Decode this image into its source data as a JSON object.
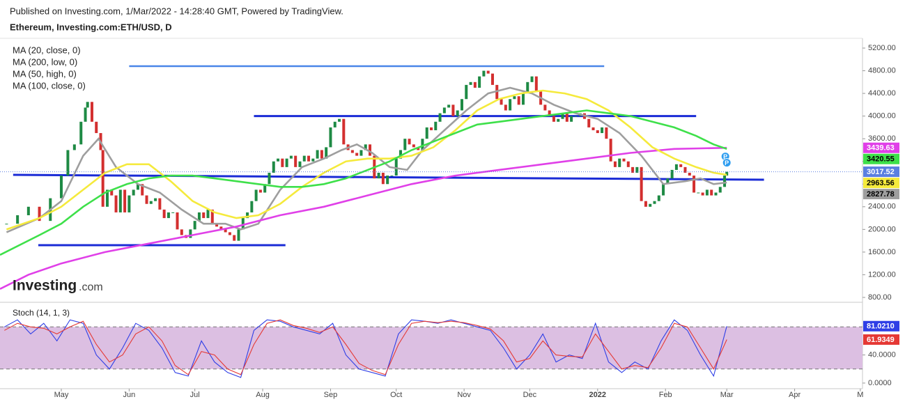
{
  "header": {
    "published": "Published on Investing.com, 1/Mar/2022 - 14:28:40 GMT, Powered by TradingView."
  },
  "watermark": {
    "brand": "Investing",
    "suffix": ".com"
  },
  "event_markers": [
    "P",
    "P"
  ],
  "chart_data": [
    {
      "type": "candlestick",
      "title": "Ethereum, Investing.com:ETH/USD, D",
      "up_color": "#1e8a44",
      "down_color": "#d32f2f",
      "marker_color": "#5b7fe0",
      "x": [
        -25,
        -20,
        -15,
        -10,
        -5,
        0,
        3,
        6,
        9,
        11,
        12,
        14,
        16,
        18,
        19,
        21,
        23,
        25,
        27,
        29,
        31,
        33,
        35,
        37,
        39,
        41,
        43,
        45,
        47,
        49,
        51,
        53,
        55,
        57,
        59,
        61,
        63,
        65,
        67,
        69,
        71,
        73,
        75,
        77,
        79,
        81,
        83,
        85,
        87,
        89,
        91,
        93,
        95,
        97,
        99,
        101,
        103,
        105,
        107,
        109,
        111,
        113,
        115,
        117,
        119,
        121,
        123,
        125,
        127,
        129,
        131,
        133,
        135,
        137,
        139,
        141,
        143,
        145,
        147,
        149,
        151,
        153,
        155,
        157,
        159,
        161,
        163,
        165,
        167,
        169,
        171,
        173,
        175,
        177,
        179,
        181,
        183,
        185,
        187,
        189,
        191,
        193,
        195,
        197,
        199,
        201,
        203,
        205,
        207,
        209,
        211,
        213,
        215,
        217,
        219,
        221,
        223,
        225,
        227,
        229,
        231,
        233,
        235,
        237,
        239,
        241,
        243,
        245,
        247,
        249,
        251,
        253,
        255,
        257,
        259,
        261,
        263,
        265,
        267,
        269,
        271,
        273,
        275,
        277,
        279,
        281,
        283,
        285,
        287,
        289,
        291,
        293,
        295,
        297,
        299,
        301,
        303,
        304
      ],
      "values": [
        2100,
        2250,
        2400,
        2150,
        2550,
        2950,
        3400,
        3500,
        3900,
        4150,
        4250,
        3900,
        3700,
        3400,
        2400,
        2700,
        2600,
        2300,
        2700,
        2300,
        2600,
        2700,
        2800,
        2600,
        2450,
        2500,
        2550,
        2350,
        2200,
        2300,
        2300,
        2000,
        1900,
        1850,
        2000,
        2150,
        2300,
        2200,
        2350,
        2100,
        2050,
        2000,
        1950,
        1900,
        1800,
        2000,
        2200,
        2300,
        2500,
        2700,
        2650,
        2800,
        3000,
        3200,
        3250,
        3100,
        3250,
        3300,
        3100,
        3200,
        3300,
        3200,
        3250,
        3400,
        3250,
        3450,
        3800,
        3900,
        3950,
        3500,
        3400,
        3350,
        3300,
        3400,
        3500,
        3300,
        2900,
        3000,
        2800,
        2950,
        2950,
        3250,
        3400,
        3600,
        3500,
        3450,
        3400,
        3600,
        3800,
        3750,
        3900,
        4050,
        4150,
        4200,
        4000,
        4100,
        4300,
        4550,
        4600,
        4500,
        4700,
        4800,
        4750,
        4550,
        4300,
        4200,
        4100,
        4300,
        4350,
        4200,
        4400,
        4600,
        4700,
        4450,
        4200,
        4100,
        4000,
        3900,
        3950,
        4050,
        3900,
        4000,
        4000,
        4050,
        3950,
        3800,
        3750,
        3700,
        3800,
        3600,
        3200,
        3100,
        3250,
        3200,
        3100,
        3000,
        3100,
        2500,
        2400,
        2450,
        2500,
        2600,
        2800,
        2900,
        3050,
        3150,
        3100,
        3000,
        2950,
        2650,
        2650,
        2600,
        2700,
        2600,
        2650,
        2750,
        2950,
        3017.52
      ],
      "series": [
        {
          "name": "MA (20, close, 0)",
          "color": "#9e9e9e",
          "x": [
            -25,
            -10,
            0,
            10,
            17,
            25,
            35,
            45,
            55,
            65,
            75,
            82,
            90,
            100,
            110,
            120,
            128,
            135,
            142,
            150,
            158,
            165,
            175,
            185,
            195,
            205,
            215,
            225,
            235,
            245,
            255,
            265,
            275,
            285,
            292,
            298,
            304
          ],
          "values": [
            1950,
            2200,
            2500,
            3300,
            3600,
            3100,
            2800,
            2650,
            2350,
            2100,
            2100,
            2000,
            2100,
            2700,
            3100,
            3250,
            3400,
            3500,
            3350,
            3100,
            3050,
            3400,
            3750,
            4100,
            4400,
            4500,
            4400,
            4200,
            4050,
            3950,
            3700,
            3300,
            2800,
            2850,
            2900,
            2800,
            2827.78
          ]
        },
        {
          "name": "MA (200, low, 0)",
          "color": "#e040e8",
          "x": [
            -28,
            -15,
            0,
            20,
            40,
            60,
            80,
            100,
            120,
            140,
            160,
            180,
            200,
            220,
            240,
            260,
            280,
            304
          ],
          "values": [
            950,
            1200,
            1400,
            1600,
            1750,
            1900,
            2050,
            2250,
            2400,
            2600,
            2800,
            2950,
            3050,
            3150,
            3250,
            3350,
            3420,
            3439.63
          ]
        },
        {
          "name": "MA (50, high, 0)",
          "color": "#f5ea3c",
          "x": [
            -25,
            -10,
            0,
            10,
            20,
            30,
            40,
            50,
            60,
            70,
            80,
            90,
            100,
            110,
            120,
            130,
            140,
            150,
            160,
            170,
            180,
            190,
            200,
            210,
            220,
            230,
            240,
            250,
            260,
            270,
            280,
            290,
            298,
            304
          ],
          "values": [
            2000,
            2200,
            2400,
            2700,
            3000,
            3150,
            3150,
            2850,
            2500,
            2300,
            2200,
            2250,
            2450,
            2750,
            3000,
            3200,
            3250,
            3250,
            3300,
            3450,
            3750,
            4100,
            4300,
            4400,
            4450,
            4400,
            4300,
            4100,
            3800,
            3450,
            3250,
            3100,
            3000,
            2963.56
          ]
        },
        {
          "name": "MA (100, close, 0)",
          "color": "#3ee04a",
          "x": [
            -28,
            -10,
            0,
            10,
            20,
            30,
            40,
            50,
            60,
            70,
            80,
            90,
            100,
            110,
            120,
            130,
            140,
            150,
            160,
            170,
            180,
            190,
            200,
            210,
            220,
            230,
            240,
            250,
            260,
            270,
            280,
            290,
            298,
            304
          ],
          "values": [
            1550,
            1900,
            2100,
            2400,
            2650,
            2800,
            2900,
            2950,
            2950,
            2900,
            2850,
            2800,
            2750,
            2750,
            2800,
            2900,
            3050,
            3200,
            3400,
            3550,
            3700,
            3850,
            3900,
            3950,
            4000,
            4050,
            4100,
            4050,
            4000,
            3900,
            3800,
            3650,
            3500,
            3420.55
          ]
        }
      ],
      "levels": [
        {
          "color": "#4a86e8",
          "x": [
            31,
            248
          ],
          "y": [
            4880,
            4880
          ]
        },
        {
          "color": "#1a2bd6",
          "x": [
            88,
            290
          ],
          "y": [
            4000,
            4000
          ]
        },
        {
          "color": "#1a2bd6",
          "x": [
            -22,
            321
          ],
          "y": [
            2963,
            2877
          ]
        },
        {
          "color": "#1a2bd6",
          "x": [
            -10.5,
            102.4
          ],
          "y": [
            1722,
            1722
          ]
        }
      ],
      "xlim": [
        -28,
        366
      ],
      "ylim": [
        726,
        5360
      ],
      "yticks": [
        {
          "value": 800,
          "label": "800.00"
        },
        {
          "value": 1200,
          "label": "1200.00"
        },
        {
          "value": 1600,
          "label": "1600.00"
        },
        {
          "value": 2000,
          "label": "2000.00"
        },
        {
          "value": 2400,
          "label": "2400.00"
        },
        {
          "value": 2800,
          "label": "2800.00"
        },
        {
          "value": 3200,
          "label": "3200.00"
        },
        {
          "value": 3600,
          "label": "3600.00"
        },
        {
          "value": 4000,
          "label": "4000.00"
        },
        {
          "value": 4400,
          "label": "4400.00"
        },
        {
          "value": 4800,
          "label": "4800.00"
        },
        {
          "value": 5200,
          "label": "5200.00"
        }
      ]
    },
    {
      "type": "line",
      "title": "Stoch (14, 1, 3)",
      "bands": [
        20,
        80
      ],
      "band_color": "#dcbfe2",
      "series": [
        {
          "color": "#2f3fe6",
          "x": [
            -26,
            -20,
            -14,
            -8,
            -2,
            4,
            10,
            16,
            22,
            28,
            34,
            40,
            46,
            52,
            58,
            64,
            70,
            76,
            82,
            88,
            94,
            100,
            106,
            112,
            118,
            124,
            130,
            136,
            142,
            148,
            154,
            160,
            166,
            172,
            178,
            184,
            190,
            196,
            202,
            208,
            214,
            220,
            226,
            232,
            238,
            244,
            250,
            256,
            262,
            268,
            274,
            280,
            286,
            292,
            298,
            304
          ],
          "values": [
            80,
            90,
            70,
            85,
            60,
            90,
            85,
            40,
            20,
            50,
            85,
            75,
            50,
            15,
            10,
            60,
            30,
            15,
            8,
            75,
            90,
            88,
            80,
            75,
            70,
            85,
            40,
            20,
            15,
            10,
            70,
            90,
            88,
            85,
            90,
            85,
            80,
            75,
            50,
            20,
            40,
            70,
            30,
            40,
            35,
            85,
            30,
            15,
            30,
            20,
            60,
            90,
            75,
            40,
            10,
            81.021
          ],
          "value_labels": [
            null,
            null,
            null,
            null,
            null,
            null,
            null,
            null,
            null,
            null,
            null,
            null,
            null,
            null,
            null,
            null,
            null,
            null,
            null,
            null,
            null,
            null,
            null,
            null,
            null,
            null,
            null,
            null,
            null,
            null,
            null,
            null,
            null,
            null,
            null,
            null,
            null,
            null,
            null,
            null,
            null,
            null,
            null,
            null,
            null,
            null,
            null,
            null,
            null,
            null,
            null,
            null,
            null,
            null,
            null,
            "81.0210"
          ]
        },
        {
          "color": "#e53935",
          "x": [
            -26,
            -20,
            -14,
            -8,
            -2,
            4,
            10,
            16,
            22,
            28,
            34,
            40,
            46,
            52,
            58,
            64,
            70,
            76,
            82,
            88,
            94,
            100,
            106,
            112,
            118,
            124,
            130,
            136,
            142,
            148,
            154,
            160,
            166,
            172,
            178,
            184,
            190,
            196,
            202,
            208,
            214,
            220,
            226,
            232,
            238,
            244,
            250,
            256,
            262,
            268,
            274,
            280,
            286,
            292,
            298,
            304
          ],
          "values": [
            75,
            85,
            80,
            78,
            70,
            80,
            88,
            55,
            30,
            40,
            70,
            80,
            60,
            25,
            12,
            45,
            40,
            20,
            12,
            55,
            85,
            90,
            82,
            78,
            72,
            80,
            55,
            28,
            18,
            12,
            55,
            85,
            88,
            86,
            88,
            86,
            82,
            77,
            60,
            30,
            35,
            60,
            40,
            38,
            37,
            70,
            45,
            20,
            25,
            22,
            50,
            85,
            80,
            50,
            20,
            61.9349
          ]
        }
      ],
      "xlim": [
        -28,
        366
      ],
      "ylim": [
        -7,
        114
      ],
      "yticks": [
        {
          "value": 0,
          "label": "0.0000"
        },
        {
          "value": 40,
          "label": "40.0000"
        }
      ],
      "xticks": [
        {
          "value": 0,
          "label": "May"
        },
        {
          "value": 31,
          "label": "Jun"
        },
        {
          "value": 61,
          "label": "Jul"
        },
        {
          "value": 92,
          "label": "Aug"
        },
        {
          "value": 123,
          "label": "Sep"
        },
        {
          "value": 153,
          "label": "Oct"
        },
        {
          "value": 184,
          "label": "Nov"
        },
        {
          "value": 214,
          "label": "Dec"
        },
        {
          "value": 245,
          "label": "2022"
        },
        {
          "value": 276,
          "label": "Feb"
        },
        {
          "value": 304,
          "label": "Mar"
        },
        {
          "value": 335,
          "label": "Apr"
        },
        {
          "value": 365,
          "label": "M"
        }
      ]
    }
  ]
}
